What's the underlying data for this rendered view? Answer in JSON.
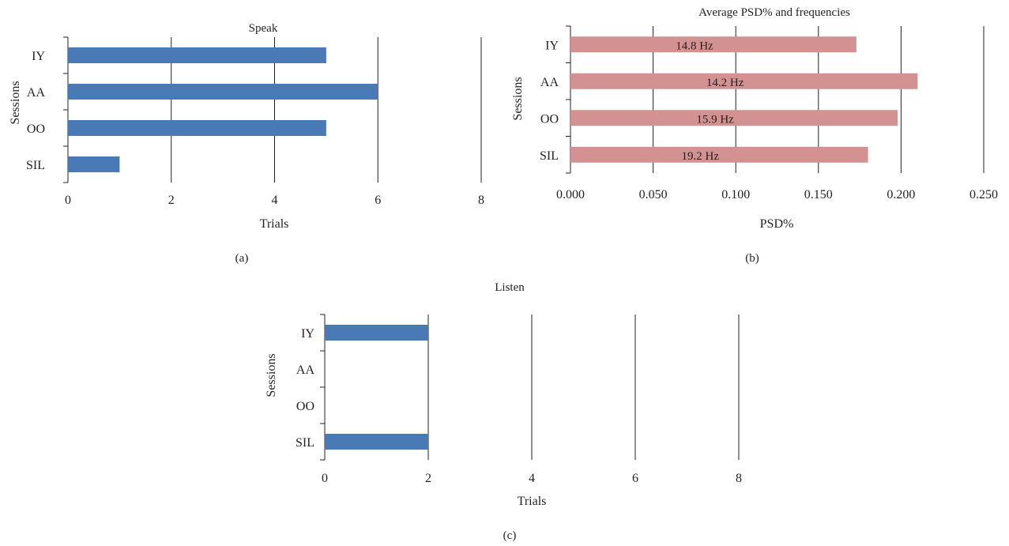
{
  "chart_data": [
    {
      "id": "a",
      "type": "bar",
      "orientation": "horizontal",
      "title": "Speak",
      "xlabel": "Trials",
      "ylabel": "Sessions",
      "panel_label": "(a)",
      "categories": [
        "IY",
        "AA",
        "OO",
        "SIL"
      ],
      "values": [
        5,
        6,
        5,
        1
      ],
      "xlim": [
        0,
        8
      ],
      "xticks": [
        "0",
        "2",
        "4",
        "6",
        "8"
      ],
      "grid": "vertical",
      "color": "#4a7ab5"
    },
    {
      "id": "b",
      "type": "bar",
      "orientation": "horizontal",
      "title": "Average PSD% and frequencies",
      "xlabel": "PSD%",
      "ylabel": "Sessions",
      "panel_label": "(b)",
      "categories": [
        "IY",
        "AA",
        "OO",
        "SIL"
      ],
      "values": [
        0.173,
        0.21,
        0.198,
        0.18
      ],
      "data_labels": [
        "14.8 Hz",
        "14.2 Hz",
        "15.9 Hz",
        "19.2 Hz"
      ],
      "xlim": [
        0,
        0.25
      ],
      "xticks": [
        "0.000",
        "0.050",
        "0.100",
        "0.150",
        "0.200",
        "0.250"
      ],
      "grid": "vertical",
      "color": "#d49191"
    },
    {
      "id": "c",
      "type": "bar",
      "orientation": "horizontal",
      "title": "Listen",
      "xlabel": "Trials",
      "ylabel": "Sessions",
      "panel_label": "(c)",
      "categories": [
        "IY",
        "AA",
        "OO",
        "SIL"
      ],
      "values": [
        2,
        0,
        0,
        2
      ],
      "xlim": [
        0,
        8
      ],
      "xticks": [
        "0",
        "2",
        "4",
        "6",
        "8"
      ],
      "grid": "vertical",
      "color": "#4a7ab5"
    }
  ]
}
